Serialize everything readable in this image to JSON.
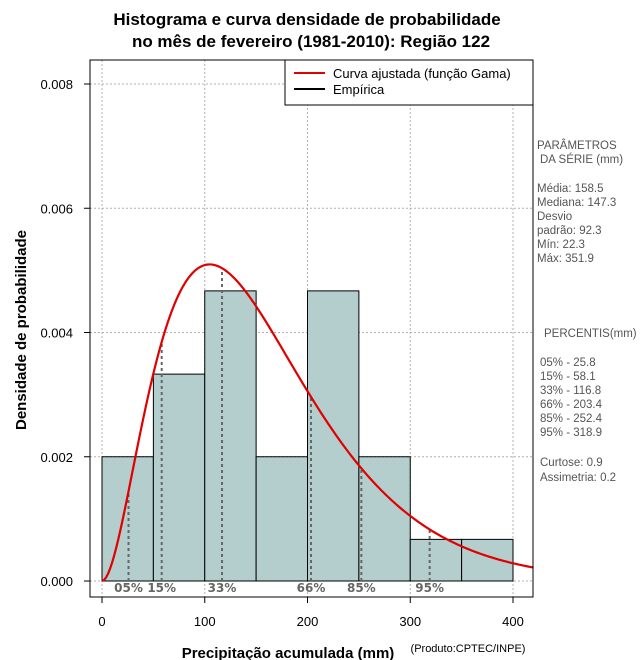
{
  "chart_data": {
    "type": "bar",
    "title_line1": "Histograma e curva densidade de probabilidade",
    "title_line2": "no mês de fevereiro (1981-2010): Região 122",
    "xlabel": "Precipitação acumulada (mm)",
    "ylabel": "Densidade de probabilidade",
    "credit": "(Produto:CPTEC/INPE)",
    "xlim": [
      -5,
      420
    ],
    "ylim": [
      -0.0002,
      0.0083
    ],
    "x_ticks": [
      0,
      100,
      200,
      300,
      400
    ],
    "x_tick_labels": [
      "0",
      "100",
      "200",
      "300",
      "400"
    ],
    "y_ticks": [
      0.0,
      0.002,
      0.004,
      0.006,
      0.008
    ],
    "y_tick_labels": [
      "0.000",
      "0.002",
      "0.004",
      "0.006",
      "0.008"
    ],
    "grid": true,
    "legend": {
      "position": "top-right",
      "entries": [
        {
          "label": "Curva ajustada (função Gama)",
          "color": "#e00000"
        },
        {
          "label": "Empírica",
          "color": "#000000"
        }
      ]
    },
    "histogram": {
      "bins": [
        {
          "from": 0,
          "to": 50,
          "density": 0.002
        },
        {
          "from": 50,
          "to": 100,
          "density": 0.00333
        },
        {
          "from": 100,
          "to": 150,
          "density": 0.00467
        },
        {
          "from": 150,
          "to": 200,
          "density": 0.002
        },
        {
          "from": 200,
          "to": 250,
          "density": 0.00467
        },
        {
          "from": 250,
          "to": 300,
          "density": 0.002
        },
        {
          "from": 300,
          "to": 350,
          "density": 0.00067
        },
        {
          "from": 350,
          "to": 400,
          "density": 0.00067
        }
      ],
      "fill": "#b4cdcd"
    },
    "gamma_fit": {
      "mean": 158.5,
      "sd": 92.3,
      "x_range": [
        0,
        420
      ],
      "color": "#e00000"
    },
    "percentile_markers": [
      {
        "label": "05%",
        "x": 25.8
      },
      {
        "label": "15%",
        "x": 58.1
      },
      {
        "label": "33%",
        "x": 116.8
      },
      {
        "label": "66%",
        "x": 203.4
      },
      {
        "label": "85%",
        "x": 252.4
      },
      {
        "label": "95%",
        "x": 318.9
      }
    ]
  },
  "side_panel": {
    "params_title_1": "PARÂMETROS",
    "params_title_2": "DA SÉRIE (mm)",
    "media": "Média:  158.5",
    "mediana": "Mediana:  147.3",
    "desvio_1": "Desvio",
    "desvio_2": "padrão:  92.3",
    "min": "Mín:  22.3",
    "max": "Máx:   351.9",
    "percentis_title": "PERCENTIS(mm)",
    "p05": "05% -   25.8",
    "p15": "15% -   58.1",
    "p33": "33% -   116.8",
    "p66": "66% -   203.4",
    "p85": "85% -   252.4",
    "p95": "95% -   318.9",
    "curtose": "Curtose:  0.9",
    "assimetria": "Assimetria:  0.2"
  }
}
